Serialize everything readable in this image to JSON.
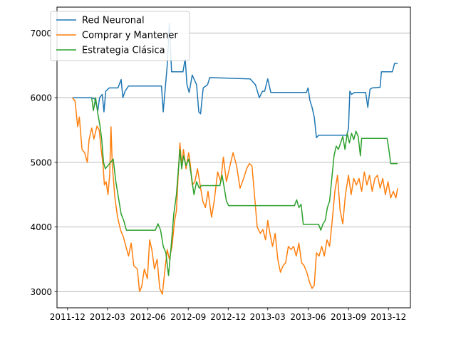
{
  "chart_data": {
    "type": "line",
    "title": "",
    "xlabel": "",
    "ylabel": "",
    "xlim": [
      "2011-11-07",
      "2014-01-20"
    ],
    "ylim": [
      2750,
      7400
    ],
    "grid": "horizontal",
    "legend_position": "top-left",
    "x_ticks": [
      {
        "date": "2011-12-01",
        "label": "2011-12"
      },
      {
        "date": "2012-03-01",
        "label": "2012-03"
      },
      {
        "date": "2012-06-01",
        "label": "2012-06"
      },
      {
        "date": "2012-09-01",
        "label": "2012-09"
      },
      {
        "date": "2012-12-01",
        "label": "2012-12"
      },
      {
        "date": "2013-03-01",
        "label": "2013-03"
      },
      {
        "date": "2013-06-01",
        "label": "2013-06"
      },
      {
        "date": "2013-09-01",
        "label": "2013-09"
      },
      {
        "date": "2013-12-01",
        "label": "2013-12"
      }
    ],
    "y_ticks": [
      3000,
      4000,
      5000,
      6000,
      7000
    ],
    "series": [
      {
        "name": "Red Neuronal",
        "color": "#1f77b4",
        "points": [
          [
            "2011-12-12",
            6000
          ],
          [
            "2012-01-25",
            6000
          ],
          [
            "2012-02-01",
            5980
          ],
          [
            "2012-02-08",
            5800
          ],
          [
            "2012-02-12",
            6000
          ],
          [
            "2012-02-18",
            6050
          ],
          [
            "2012-02-22",
            5780
          ],
          [
            "2012-02-26",
            6100
          ],
          [
            "2012-03-05",
            6150
          ],
          [
            "2012-03-25",
            6150
          ],
          [
            "2012-04-01",
            6280
          ],
          [
            "2012-04-05",
            6000
          ],
          [
            "2012-04-10",
            6100
          ],
          [
            "2012-04-18",
            6180
          ],
          [
            "2012-07-02",
            6180
          ],
          [
            "2012-07-06",
            5780
          ],
          [
            "2012-07-15",
            6500
          ],
          [
            "2012-07-20",
            7150
          ],
          [
            "2012-07-25",
            6400
          ],
          [
            "2012-08-10",
            6400
          ],
          [
            "2012-08-20",
            6400
          ],
          [
            "2012-08-25",
            6600
          ],
          [
            "2012-08-29",
            6200
          ],
          [
            "2012-09-03",
            6080
          ],
          [
            "2012-09-10",
            6350
          ],
          [
            "2012-09-20",
            6200
          ],
          [
            "2012-09-25",
            5780
          ],
          [
            "2012-09-29",
            5750
          ],
          [
            "2012-10-05",
            6150
          ],
          [
            "2012-10-15",
            6200
          ],
          [
            "2012-10-20",
            6310
          ],
          [
            "2013-01-20",
            6290
          ],
          [
            "2013-02-01",
            6200
          ],
          [
            "2013-02-10",
            6000
          ],
          [
            "2013-02-17",
            6100
          ],
          [
            "2013-02-22",
            6100
          ],
          [
            "2013-03-01",
            6290
          ],
          [
            "2013-03-08",
            6080
          ],
          [
            "2013-05-28",
            6080
          ],
          [
            "2013-06-01",
            6150
          ],
          [
            "2013-06-05",
            5960
          ],
          [
            "2013-06-10",
            5850
          ],
          [
            "2013-06-15",
            5700
          ],
          [
            "2013-06-20",
            5380
          ],
          [
            "2013-06-25",
            5420
          ],
          [
            "2013-08-28",
            5420
          ],
          [
            "2013-09-01",
            5520
          ],
          [
            "2013-09-04",
            6100
          ],
          [
            "2013-09-08",
            6050
          ],
          [
            "2013-09-15",
            6080
          ],
          [
            "2013-10-10",
            6080
          ],
          [
            "2013-10-15",
            5850
          ],
          [
            "2013-10-20",
            6130
          ],
          [
            "2013-10-25",
            6150
          ],
          [
            "2013-11-12",
            6160
          ],
          [
            "2013-11-15",
            6400
          ],
          [
            "2013-11-20",
            6400
          ],
          [
            "2013-12-10",
            6400
          ],
          [
            "2013-12-15",
            6530
          ],
          [
            "2013-12-22",
            6530
          ]
        ]
      },
      {
        "name": "Comprar y Mantener",
        "color": "#ff7f0e",
        "points": [
          [
            "2011-12-12",
            6000
          ],
          [
            "2011-12-18",
            5950
          ],
          [
            "2011-12-24",
            5550
          ],
          [
            "2011-12-28",
            5700
          ],
          [
            "2012-01-03",
            5200
          ],
          [
            "2012-01-09",
            5150
          ],
          [
            "2012-01-15",
            5000
          ],
          [
            "2012-01-19",
            5350
          ],
          [
            "2012-01-25",
            5530
          ],
          [
            "2012-01-30",
            5360
          ],
          [
            "2012-02-06",
            5560
          ],
          [
            "2012-02-11",
            5500
          ],
          [
            "2012-02-16",
            5180
          ],
          [
            "2012-02-20",
            4950
          ],
          [
            "2012-02-23",
            4650
          ],
          [
            "2012-02-27",
            4700
          ],
          [
            "2012-03-02",
            4500
          ],
          [
            "2012-03-06",
            4800
          ],
          [
            "2012-03-09",
            5550
          ],
          [
            "2012-03-12",
            4950
          ],
          [
            "2012-03-18",
            4450
          ],
          [
            "2012-03-24",
            4150
          ],
          [
            "2012-03-31",
            3950
          ],
          [
            "2012-04-06",
            3850
          ],
          [
            "2012-04-12",
            3700
          ],
          [
            "2012-04-18",
            3550
          ],
          [
            "2012-04-24",
            3750
          ],
          [
            "2012-04-30",
            3400
          ],
          [
            "2012-05-08",
            3350
          ],
          [
            "2012-05-13",
            3000
          ],
          [
            "2012-05-18",
            3080
          ],
          [
            "2012-05-24",
            3350
          ],
          [
            "2012-05-31",
            3200
          ],
          [
            "2012-06-05",
            3800
          ],
          [
            "2012-06-10",
            3650
          ],
          [
            "2012-06-16",
            3350
          ],
          [
            "2012-06-22",
            3500
          ],
          [
            "2012-06-28",
            3050
          ],
          [
            "2012-07-04",
            2960
          ],
          [
            "2012-07-10",
            3350
          ],
          [
            "2012-07-15",
            3650
          ],
          [
            "2012-07-20",
            3500
          ],
          [
            "2012-07-26",
            3700
          ],
          [
            "2012-08-01",
            4100
          ],
          [
            "2012-08-05",
            4250
          ],
          [
            "2012-08-09",
            4800
          ],
          [
            "2012-08-13",
            5300
          ],
          [
            "2012-08-17",
            4950
          ],
          [
            "2012-08-21",
            5200
          ],
          [
            "2012-08-27",
            4900
          ],
          [
            "2012-09-02",
            5150
          ],
          [
            "2012-09-06",
            4950
          ],
          [
            "2012-09-10",
            4650
          ],
          [
            "2012-09-16",
            4700
          ],
          [
            "2012-09-22",
            4900
          ],
          [
            "2012-09-28",
            4650
          ],
          [
            "2012-10-04",
            4400
          ],
          [
            "2012-10-10",
            4300
          ],
          [
            "2012-10-16",
            4550
          ],
          [
            "2012-10-24",
            4150
          ],
          [
            "2012-10-30",
            4400
          ],
          [
            "2012-11-07",
            4850
          ],
          [
            "2012-11-14",
            4700
          ],
          [
            "2012-11-20",
            5080
          ],
          [
            "2012-11-27",
            4700
          ],
          [
            "2012-12-05",
            4950
          ],
          [
            "2012-12-12",
            5150
          ],
          [
            "2012-12-20",
            4950
          ],
          [
            "2012-12-28",
            4600
          ],
          [
            "2013-01-05",
            4750
          ],
          [
            "2013-01-12",
            4900
          ],
          [
            "2013-01-18",
            4980
          ],
          [
            "2013-01-24",
            4950
          ],
          [
            "2013-01-31",
            4400
          ],
          [
            "2013-02-05",
            4000
          ],
          [
            "2013-02-12",
            3900
          ],
          [
            "2013-02-18",
            3960
          ],
          [
            "2013-02-24",
            3800
          ],
          [
            "2013-03-01",
            4100
          ],
          [
            "2013-03-06",
            3900
          ],
          [
            "2013-03-12",
            3700
          ],
          [
            "2013-03-18",
            3900
          ],
          [
            "2013-03-24",
            3500
          ],
          [
            "2013-03-30",
            3300
          ],
          [
            "2013-04-05",
            3400
          ],
          [
            "2013-04-11",
            3450
          ],
          [
            "2013-04-17",
            3700
          ],
          [
            "2013-04-23",
            3650
          ],
          [
            "2013-04-29",
            3700
          ],
          [
            "2013-05-05",
            3550
          ],
          [
            "2013-05-11",
            3750
          ],
          [
            "2013-05-17",
            3450
          ],
          [
            "2013-05-23",
            3400
          ],
          [
            "2013-05-29",
            3300
          ],
          [
            "2013-06-04",
            3150
          ],
          [
            "2013-06-10",
            3050
          ],
          [
            "2013-06-15",
            3100
          ],
          [
            "2013-06-20",
            3600
          ],
          [
            "2013-06-26",
            3550
          ],
          [
            "2013-07-02",
            3700
          ],
          [
            "2013-07-08",
            3550
          ],
          [
            "2013-07-14",
            3800
          ],
          [
            "2013-07-20",
            3700
          ],
          [
            "2013-07-26",
            4100
          ],
          [
            "2013-08-01",
            4550
          ],
          [
            "2013-08-07",
            4800
          ],
          [
            "2013-08-13",
            4250
          ],
          [
            "2013-08-19",
            4050
          ],
          [
            "2013-08-25",
            4500
          ],
          [
            "2013-09-01",
            4800
          ],
          [
            "2013-09-07",
            4500
          ],
          [
            "2013-09-13",
            4750
          ],
          [
            "2013-09-19",
            4650
          ],
          [
            "2013-09-25",
            4750
          ],
          [
            "2013-10-01",
            4550
          ],
          [
            "2013-10-07",
            4850
          ],
          [
            "2013-10-13",
            4650
          ],
          [
            "2013-10-19",
            4800
          ],
          [
            "2013-10-25",
            4550
          ],
          [
            "2013-10-31",
            4750
          ],
          [
            "2013-11-06",
            4800
          ],
          [
            "2013-11-12",
            4600
          ],
          [
            "2013-11-18",
            4750
          ],
          [
            "2013-11-24",
            4500
          ],
          [
            "2013-11-30",
            4700
          ],
          [
            "2013-12-06",
            4450
          ],
          [
            "2013-12-12",
            4550
          ],
          [
            "2013-12-18",
            4450
          ],
          [
            "2013-12-22",
            4600
          ]
        ]
      },
      {
        "name": "Estrategia Clásica",
        "color": "#2ca02c",
        "points": [
          [
            "2012-01-25",
            6000
          ],
          [
            "2012-01-29",
            5800
          ],
          [
            "2012-02-03",
            6000
          ],
          [
            "2012-02-08",
            5750
          ],
          [
            "2012-02-13",
            5560
          ],
          [
            "2012-02-17",
            5350
          ],
          [
            "2012-02-21",
            5000
          ],
          [
            "2012-02-25",
            4900
          ],
          [
            "2012-03-08",
            5000
          ],
          [
            "2012-03-14",
            5050
          ],
          [
            "2012-03-20",
            4700
          ],
          [
            "2012-03-26",
            4450
          ],
          [
            "2012-04-01",
            4200
          ],
          [
            "2012-04-07",
            4100
          ],
          [
            "2012-04-13",
            3950
          ],
          [
            "2012-06-18",
            3950
          ],
          [
            "2012-06-24",
            4050
          ],
          [
            "2012-06-30",
            3950
          ],
          [
            "2012-07-06",
            3700
          ],
          [
            "2012-07-12",
            3600
          ],
          [
            "2012-07-18",
            3250
          ],
          [
            "2012-07-24",
            3700
          ],
          [
            "2012-07-30",
            4200
          ],
          [
            "2012-08-05",
            4500
          ],
          [
            "2012-08-09",
            4850
          ],
          [
            "2012-08-13",
            5200
          ],
          [
            "2012-08-17",
            4900
          ],
          [
            "2012-08-21",
            5100
          ],
          [
            "2012-08-27",
            4950
          ],
          [
            "2012-09-02",
            5050
          ],
          [
            "2012-09-08",
            4800
          ],
          [
            "2012-09-14",
            4500
          ],
          [
            "2012-09-20",
            4700
          ],
          [
            "2012-09-26",
            4600
          ],
          [
            "2012-10-01",
            4640
          ],
          [
            "2012-11-12",
            4640
          ],
          [
            "2012-11-17",
            4800
          ],
          [
            "2012-11-22",
            4600
          ],
          [
            "2012-11-27",
            4400
          ],
          [
            "2012-12-02",
            4330
          ],
          [
            "2013-05-01",
            4330
          ],
          [
            "2013-05-06",
            4420
          ],
          [
            "2013-05-11",
            4300
          ],
          [
            "2013-05-16",
            4350
          ],
          [
            "2013-05-21",
            4040
          ],
          [
            "2013-06-25",
            4040
          ],
          [
            "2013-06-30",
            3950
          ],
          [
            "2013-07-05",
            4050
          ],
          [
            "2013-07-10",
            4100
          ],
          [
            "2013-07-15",
            4300
          ],
          [
            "2013-07-20",
            4400
          ],
          [
            "2013-07-25",
            4750
          ],
          [
            "2013-07-30",
            5100
          ],
          [
            "2013-08-04",
            5250
          ],
          [
            "2013-08-09",
            5200
          ],
          [
            "2013-08-14",
            5300
          ],
          [
            "2013-08-19",
            5400
          ],
          [
            "2013-08-24",
            5200
          ],
          [
            "2013-08-29",
            5450
          ],
          [
            "2013-09-03",
            5300
          ],
          [
            "2013-09-08",
            5450
          ],
          [
            "2013-09-13",
            5350
          ],
          [
            "2013-09-18",
            5480
          ],
          [
            "2013-09-23",
            5400
          ],
          [
            "2013-09-28",
            5100
          ],
          [
            "2013-10-01",
            5370
          ],
          [
            "2013-11-28",
            5370
          ],
          [
            "2013-12-02",
            5200
          ],
          [
            "2013-12-06",
            4980
          ],
          [
            "2013-12-22",
            4980
          ]
        ]
      }
    ]
  }
}
